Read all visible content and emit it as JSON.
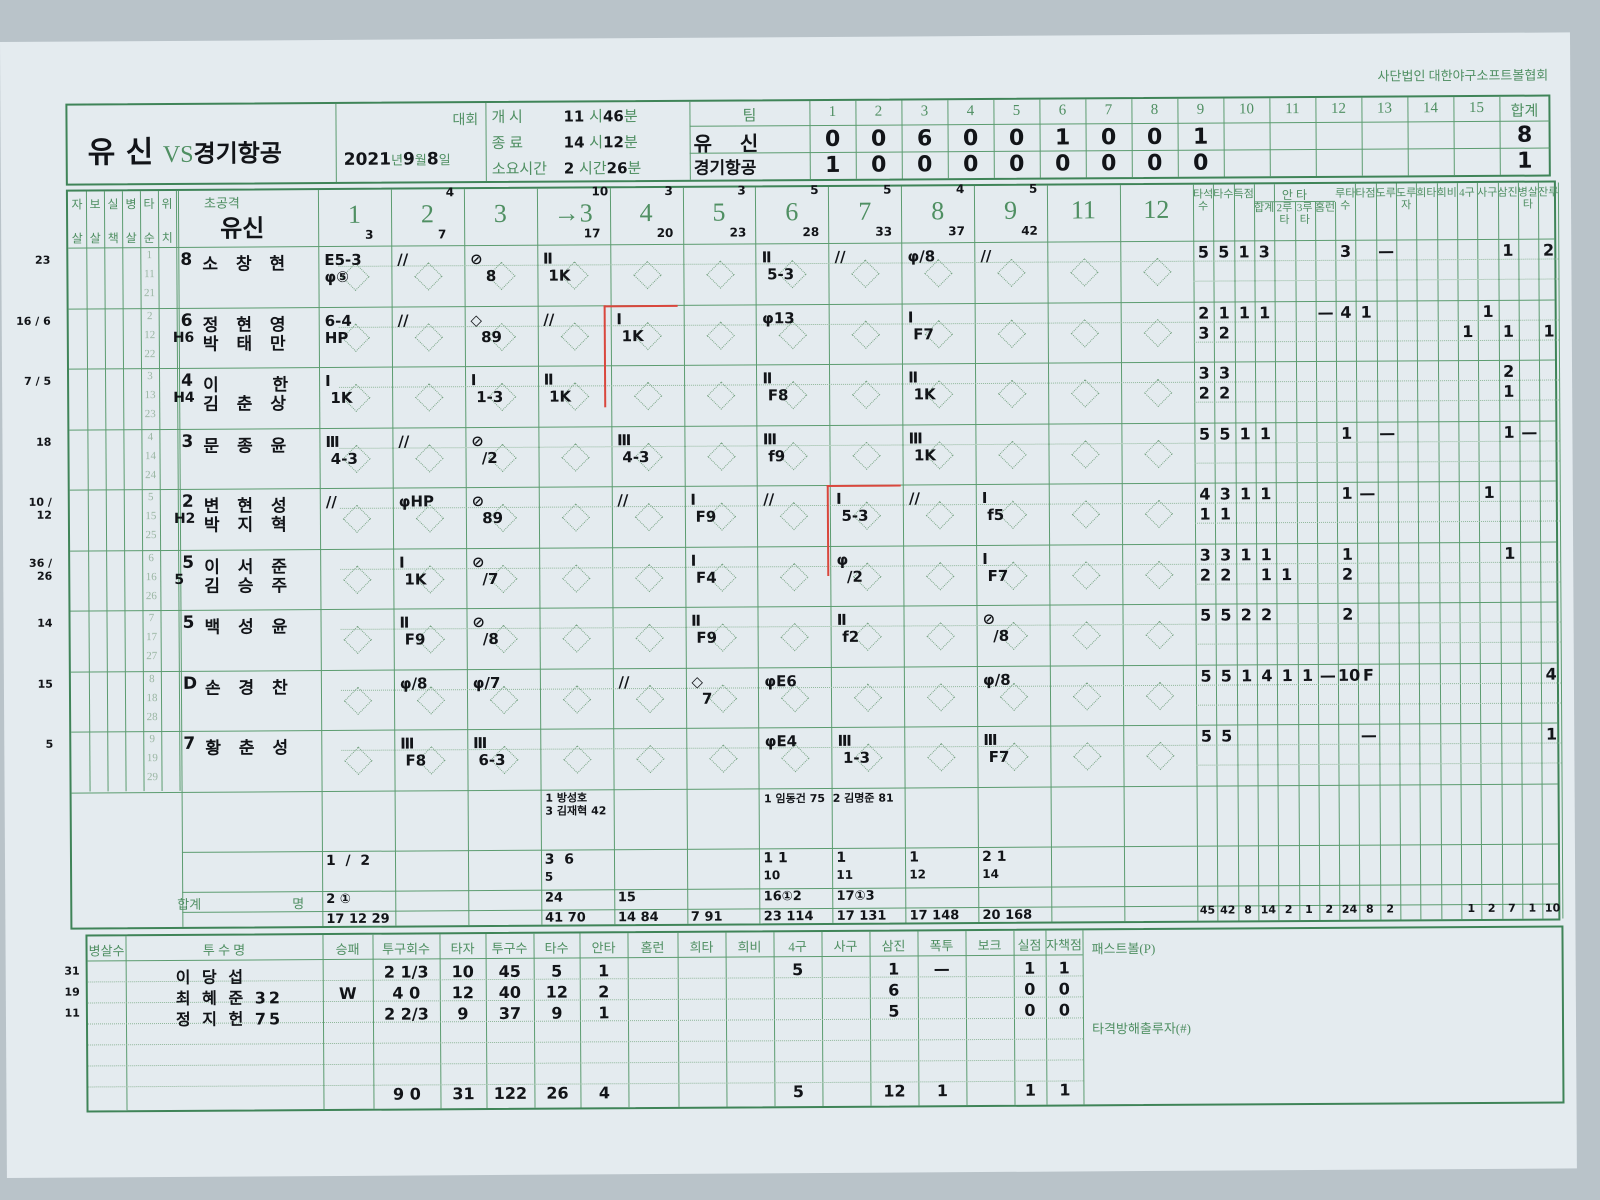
{
  "association": "사단법인  대한야구소프트볼협회",
  "header": {
    "home_team": "유 신",
    "vs": "VS",
    "away_team": "경기항공",
    "tournament_label": "대회",
    "date": {
      "year": "2021",
      "year_label": "년",
      "month": "9",
      "month_label": "월",
      "day": "8",
      "day_label": "일"
    },
    "start_label": "개    시",
    "start_hour": "11",
    "hour_label": "시",
    "start_min": "46",
    "min_label": "분",
    "end_label": "종    료",
    "end_hour": "14",
    "end_min": "12",
    "duration_label": "소요시간",
    "duration_hour": "2",
    "duration_hour_label": "시간",
    "duration_min": "26"
  },
  "linescore": {
    "team_label": "팀",
    "innings": [
      "1",
      "2",
      "3",
      "4",
      "5",
      "6",
      "7",
      "8",
      "9",
      "10",
      "11",
      "12",
      "13",
      "14",
      "15"
    ],
    "total_label": "합계",
    "teams": [
      {
        "name": "유    신",
        "runs": [
          "0",
          "0",
          "6",
          "0",
          "0",
          "1",
          "0",
          "0",
          "1",
          "",
          "",
          "",
          "",
          "",
          ""
        ],
        "total": "8"
      },
      {
        "name": "경기항공",
        "runs": [
          "1",
          "0",
          "0",
          "0",
          "0",
          "0",
          "0",
          "0",
          "0",
          "",
          "",
          "",
          "",
          "",
          ""
        ],
        "total": "1"
      }
    ]
  },
  "batting": {
    "left_headers": [
      [
        "자",
        "살"
      ],
      [
        "보",
        "살"
      ],
      [
        "실",
        "책"
      ],
      [
        "병",
        "살"
      ],
      [
        "타",
        "순"
      ],
      [
        "위",
        "치"
      ]
    ],
    "team_label": "초공격",
    "team_name": "유신",
    "inning_headers": [
      "1",
      "2",
      "3",
      "→3",
      "4",
      "5",
      "6",
      "7",
      "8",
      "9",
      "11",
      "12"
    ],
    "inning_pitch_top": [
      "",
      "4",
      "",
      "10",
      "3",
      "3",
      "5",
      "5",
      "4",
      "5",
      "",
      ""
    ],
    "inning_pitch_bottom": [
      "3",
      "7",
      "",
      "17",
      "20",
      "23",
      "28",
      "33",
      "37",
      "42",
      "",
      ""
    ],
    "stat_headers": [
      "타석수",
      "타수",
      "득점",
      "합계",
      "2루타",
      "3루타",
      "홈런",
      "루타수",
      "타점",
      "도루",
      "도루자",
      "희타",
      "희비",
      "4구",
      "사구",
      "삼진",
      "병살타",
      "잔루"
    ],
    "hits_group_label": "안  타",
    "batters": [
      {
        "margin": "23",
        "order": [
          "1",
          "11",
          "21"
        ],
        "pos": "8",
        "name": "소 창 현",
        "sub_pos": "",
        "sub_name": "",
        "innings": [
          "E5-3\nφ⑤",
          "//",
          "⊘\n   8",
          "Ⅱ\n 1K",
          "",
          "",
          "Ⅱ\n 5-3",
          "//",
          "φ/8",
          "//",
          "",
          ""
        ],
        "stats": [
          [
            "5",
            "5",
            "1",
            "3",
            "",
            "",
            "",
            "3",
            "",
            "—",
            "",
            "",
            "",
            "",
            "",
            "1",
            "",
            "2"
          ],
          [
            "",
            "",
            "",
            "",
            "",
            "",
            "",
            "",
            "",
            "",
            "",
            "",
            "",
            "",
            "",
            "",
            "",
            ""
          ]
        ]
      },
      {
        "margin": "16 / 6",
        "order": [
          "2",
          "12",
          "22"
        ],
        "pos": "6",
        "name": "정 현 영",
        "sub_pos": "H6",
        "sub_name": "박 태 만",
        "innings": [
          "6-4\nHP",
          "//",
          "◇\n  89",
          "//",
          "Ⅰ\n 1K",
          "",
          "φ13",
          "",
          "Ⅰ\n F7",
          "",
          "",
          ""
        ],
        "stats": [
          [
            "2",
            "1",
            "1",
            "1",
            "",
            "",
            "—",
            "4",
            "1",
            "",
            "",
            "",
            "",
            "",
            "1",
            "",
            "",
            ""
          ],
          [
            "3",
            "2",
            "",
            "",
            "",
            "",
            "",
            "",
            "",
            "",
            "",
            "",
            "",
            "1",
            "",
            "1",
            "",
            "1"
          ]
        ]
      },
      {
        "margin": "7 / 5",
        "order": [
          "3",
          "13",
          "23"
        ],
        "pos": "4",
        "name": "이    한",
        "sub_pos": "H4",
        "sub_name": "김 춘 상",
        "innings": [
          "Ⅰ\n 1K",
          "",
          "Ⅰ\n 1-3",
          "Ⅱ\n 1K",
          "",
          "",
          "Ⅱ\n F8",
          "",
          "Ⅱ\n 1K",
          "",
          "",
          ""
        ],
        "stats": [
          [
            "3",
            "3",
            "",
            "",
            "",
            "",
            "",
            "",
            "",
            "",
            "",
            "",
            "",
            "",
            "",
            "2",
            "",
            ""
          ],
          [
            "2",
            "2",
            "",
            "",
            "",
            "",
            "",
            "",
            "",
            "",
            "",
            "",
            "",
            "",
            "",
            "1",
            "",
            ""
          ]
        ]
      },
      {
        "margin": "18",
        "order": [
          "4",
          "14",
          "24"
        ],
        "pos": "3",
        "name": "문 종 윤",
        "sub_pos": "",
        "sub_name": "",
        "innings": [
          "Ⅲ\n 4-3",
          "//",
          "⊘\n  /2",
          "",
          "Ⅲ\n 4-3",
          "",
          "Ⅲ\n f9",
          "",
          "Ⅲ\n 1K",
          "",
          "",
          ""
        ],
        "stats": [
          [
            "5",
            "5",
            "1",
            "1",
            "",
            "",
            "",
            "1",
            "",
            "—",
            "",
            "",
            "",
            "",
            "",
            "1",
            "—",
            ""
          ],
          [
            "",
            "",
            "",
            "",
            "",
            "",
            "",
            "",
            "",
            "",
            "",
            "",
            "",
            "",
            "",
            "",
            "",
            ""
          ]
        ]
      },
      {
        "margin": "10 / 12",
        "order": [
          "5",
          "15",
          "25"
        ],
        "pos": "2",
        "name": "변 현 성",
        "sub_pos": "H2",
        "sub_name": "박 지 혁",
        "innings": [
          "//",
          "φHP",
          "⊘\n  89",
          "",
          "//",
          "Ⅰ\n F9",
          "//",
          "Ⅰ\n 5-3",
          "//",
          "Ⅰ\n f5",
          "",
          ""
        ],
        "stats": [
          [
            "4",
            "3",
            "1",
            "1",
            "",
            "",
            "",
            "1",
            "—",
            "",
            "",
            "",
            "",
            "",
            "1",
            "",
            "",
            ""
          ],
          [
            "1",
            "1",
            "",
            "",
            "",
            "",
            "",
            "",
            "",
            "",
            "",
            "",
            "",
            "",
            "",
            "",
            "",
            ""
          ]
        ]
      },
      {
        "margin": "36 / 26",
        "order": [
          "6",
          "16",
          "26"
        ],
        "pos": "5",
        "name": "이 서 준",
        "sub_pos": "5",
        "sub_name": "김 승 주",
        "innings": [
          "",
          "Ⅰ\n 1K",
          "⊘\n  /7",
          "",
          "",
          "Ⅰ\n F4",
          "",
          "φ\n  /2",
          "",
          "Ⅰ\n F7",
          "",
          ""
        ],
        "stats": [
          [
            "3",
            "3",
            "1",
            "1",
            "",
            "",
            "",
            "1",
            "",
            "",
            "",
            "",
            "",
            "",
            "",
            "1",
            "",
            ""
          ],
          [
            "2",
            "2",
            "",
            "1",
            "1",
            "",
            "",
            "2",
            "",
            "",
            "",
            "",
            "",
            "",
            "",
            "",
            "",
            ""
          ]
        ]
      },
      {
        "margin": "14",
        "order": [
          "7",
          "17",
          "27"
        ],
        "pos": "5",
        "name": "백 성 윤",
        "sub_pos": "",
        "sub_name": "",
        "innings": [
          "",
          "Ⅱ\n F9",
          "⊘\n  /8",
          "",
          "",
          "Ⅱ\n F9",
          "",
          "Ⅱ\n f2",
          "",
          "⊘\n  /8",
          "",
          ""
        ],
        "stats": [
          [
            "5",
            "5",
            "2",
            "2",
            "",
            "",
            "",
            "2",
            "",
            "",
            "",
            "",
            "",
            "",
            "",
            "",
            "",
            ""
          ],
          [
            "",
            "",
            "",
            "",
            "",
            "",
            "",
            "",
            "",
            "",
            "",
            "",
            "",
            "",
            "",
            "",
            "",
            ""
          ]
        ]
      },
      {
        "margin": "15",
        "order": [
          "8",
          "18",
          "28"
        ],
        "pos": "D",
        "name": "손 경 찬",
        "sub_pos": "",
        "sub_name": "",
        "innings": [
          "",
          "φ/8",
          "φ/7",
          "",
          "//",
          "◇\n  7",
          "φE6",
          "",
          "",
          "φ/8",
          "",
          ""
        ],
        "stats": [
          [
            "5",
            "5",
            "1",
            "4",
            "1",
            "1",
            "—",
            "10",
            "F",
            "",
            "",
            "",
            "",
            "",
            "",
            "",
            "",
            "4"
          ],
          [
            "",
            "",
            "",
            "",
            "",
            "",
            "",
            "",
            "",
            "",
            "",
            "",
            "",
            "",
            "",
            "",
            "",
            ""
          ]
        ]
      },
      {
        "margin": "5",
        "order": [
          "9",
          "19",
          "29"
        ],
        "pos": "7",
        "name": "황 춘 성",
        "sub_pos": "",
        "sub_name": "",
        "innings": [
          "",
          "Ⅲ\n F8",
          "Ⅲ\n 6-3",
          "",
          "",
          "",
          "φE4",
          "Ⅲ\n 1-3",
          "",
          "Ⅲ\n F7",
          "",
          ""
        ],
        "stats": [
          [
            "5",
            "5",
            "",
            "",
            "",
            "",
            "",
            "",
            "—",
            "",
            "",
            "",
            "",
            "",
            "",
            "",
            "",
            "1"
          ],
          [
            "",
            "",
            "",
            "",
            "",
            "",
            "",
            "",
            "",
            "",
            "",
            "",
            "",
            "",
            "",
            "",
            "",
            ""
          ]
        ]
      }
    ],
    "sub_notes": [
      "1 방성호\n3 김재혁 42",
      "1 임동건 75  2 김명준 81"
    ],
    "inning_runs_row": [
      "1  /  2",
      "",
      "",
      "3  6",
      "",
      "",
      "1 1",
      "1",
      "1",
      "2 1",
      "",
      ""
    ],
    "inning_runs_row2": [
      "",
      "",
      "",
      "5",
      "",
      "",
      "10",
      "11",
      "12",
      "14",
      "",
      ""
    ],
    "hits_row": [
      "2 ①",
      "",
      "",
      "24",
      "15",
      "",
      "16①2",
      "17①3",
      "",
      "",
      "",
      ""
    ],
    "totals_label": "합계",
    "totals_unit": "명",
    "totals_row": [
      "17 12 29",
      "",
      "",
      "41 70",
      "14 84",
      "7 91",
      "23 114",
      "17 131",
      "17 148",
      "20 168",
      "",
      ""
    ],
    "stat_totals": [
      "45",
      "42",
      "8",
      "14",
      "2",
      "1",
      "2",
      "24",
      "8",
      "2",
      "",
      "",
      "",
      "1",
      "2",
      "7",
      "1",
      "10"
    ]
  },
  "pitching": {
    "headers": [
      "병살수",
      "투 수 명",
      "승패",
      "투구회수",
      "타자",
      "투구수",
      "타수",
      "안타",
      "홈런",
      "희타",
      "희비",
      "4구",
      "사구",
      "삼진",
      "폭투",
      "보크",
      "실점",
      "자책점"
    ],
    "pitchers": [
      {
        "margin": "31",
        "name": "이 당 섭",
        "result": "",
        "innings": "2 1/3",
        "batters": "10",
        "pitches": "45",
        "at_bats": "5",
        "hits": "1",
        "hr": "",
        "sac": "",
        "sf": "",
        "bb": "5",
        "hbp": "",
        "so": "1",
        "wp": "—",
        "bk": "",
        "runs": "1",
        "er": "1"
      },
      {
        "margin": "19",
        "name": "최 혜 준 32",
        "result": "W",
        "innings": "4 0",
        "batters": "12",
        "pitches": "40",
        "at_bats": "12",
        "hits": "2",
        "hr": "",
        "sac": "",
        "sf": "",
        "bb": "",
        "hbp": "",
        "so": "6",
        "wp": "",
        "bk": "",
        "runs": "0",
        "er": "0"
      },
      {
        "margin": "11",
        "name": "정 지 헌 75",
        "result": "",
        "innings": "2 2/3",
        "batters": "9",
        "pitches": "37",
        "at_bats": "9",
        "hits": "1",
        "hr": "",
        "sac": "",
        "sf": "",
        "bb": "",
        "hbp": "",
        "so": "5",
        "wp": "",
        "bk": "",
        "runs": "0",
        "er": "0"
      }
    ],
    "totals": {
      "innings": "9 0",
      "batters": "31",
      "pitches": "122",
      "at_bats": "26",
      "hits": "4",
      "bb": "5",
      "so": "12",
      "wp": "1",
      "runs": "1",
      "er": "1"
    },
    "passed_ball_label": "패스트볼(P)",
    "interference_label": "타격방해출루자(#)"
  },
  "colors": {
    "line": "#3f8458",
    "paper": "#e4ebef",
    "ink": "#121418",
    "red_mark": "#d9473d"
  }
}
